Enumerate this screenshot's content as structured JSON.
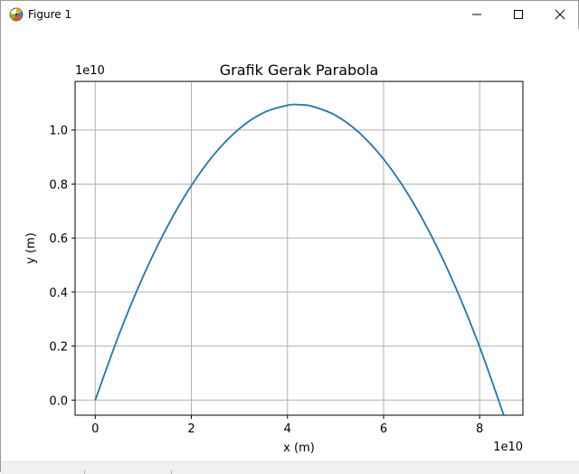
{
  "window": {
    "title": "Figure 1",
    "icon": "matplotlib-figure-icon",
    "controls": [
      "minimize-icon",
      "maximize-icon",
      "close-icon"
    ]
  },
  "chart_data": {
    "type": "line",
    "title": "Grafik Gerak Parabola",
    "xlabel": "x (m)",
    "ylabel": "y (m)",
    "x_offset_text": "1e10",
    "y_offset_text": "1e10",
    "xlim": [
      -0.42,
      8.9
    ],
    "ylim": [
      -0.056,
      1.18
    ],
    "xticks": [
      0,
      2,
      4,
      6,
      8
    ],
    "yticks": [
      0.0,
      0.2,
      0.4,
      0.6,
      0.8,
      1.0
    ],
    "xtick_labels": [
      "0",
      "2",
      "4",
      "6",
      "8"
    ],
    "ytick_labels": [
      "0.0",
      "0.2",
      "0.4",
      "0.6",
      "0.8",
      "1.0"
    ],
    "grid": true,
    "series": [
      {
        "color": "#1f77b4",
        "x": [
          0,
          0.5,
          1.0,
          1.5,
          2.0,
          2.5,
          3.0,
          3.5,
          4.0,
          4.25,
          4.5,
          5.0,
          5.5,
          6.0,
          6.5,
          7.0,
          7.5,
          8.0,
          8.5
        ],
        "y": [
          0,
          0.2452,
          0.4593,
          0.6423,
          0.7943,
          0.9153,
          1.0052,
          1.064,
          1.0918,
          1.0935,
          1.0886,
          1.0543,
          0.9889,
          0.8925,
          0.7651,
          0.6066,
          0.4171,
          0.1965,
          -0.0551
        ]
      }
    ]
  }
}
